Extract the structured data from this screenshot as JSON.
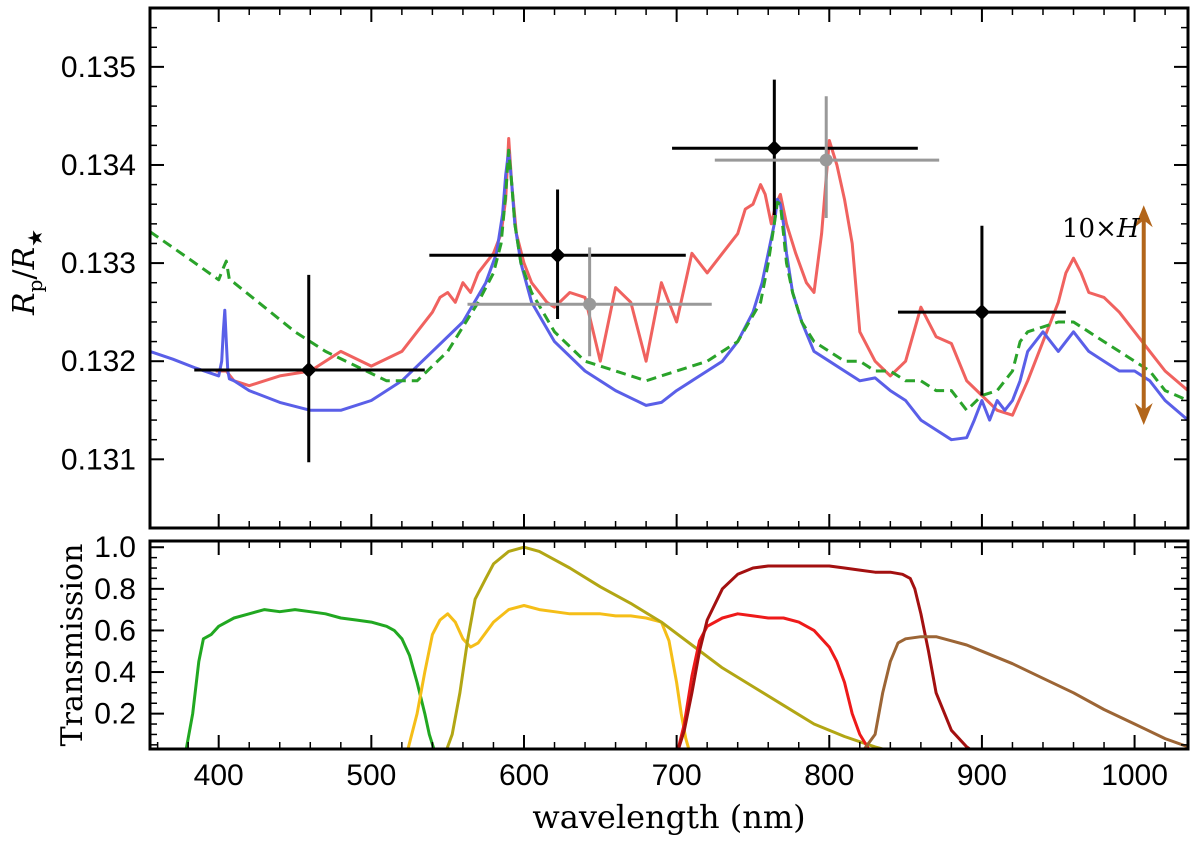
{
  "chart_data": [
    {
      "type": "line",
      "panel": "top",
      "ylabel": "Rp/R★",
      "ylabel_main": "R",
      "ylabel_sub1": "p",
      "ylabel_slash": "/",
      "ylabel_main2": "R",
      "ylabel_sub2": "★",
      "xlim": [
        355,
        1035
      ],
      "ylim": [
        0.1303,
        0.1356
      ],
      "yticks": [
        0.131,
        0.132,
        0.133,
        0.134,
        0.135
      ],
      "ytick_labels": [
        "0.131",
        "0.132",
        "0.133",
        "0.134",
        "0.135"
      ],
      "annotation": "10×H",
      "annotation_prefix": "10×",
      "annotation_var": "H",
      "scale_arrow": {
        "x": 1006,
        "y_top": 0.13359,
        "y_bottom": 0.13135,
        "color": "#b2651a"
      },
      "series": [
        {
          "name": "model-red",
          "color": "#f0625f",
          "style": "solid",
          "x": [
            398,
            402,
            405,
            410,
            420,
            440,
            460,
            480,
            500,
            520,
            530,
            540,
            545,
            550,
            555,
            560,
            565,
            570,
            575,
            580,
            585,
            588,
            590,
            592,
            595,
            600,
            605,
            610,
            615,
            620,
            630,
            640,
            650,
            660,
            670,
            680,
            690,
            700,
            710,
            720,
            730,
            740,
            745,
            750,
            755,
            758,
            762,
            765,
            768,
            772,
            778,
            785,
            790,
            795,
            800,
            805,
            810,
            815,
            820,
            830,
            840,
            850,
            860,
            870,
            880,
            890,
            900,
            910,
            920,
            930,
            940,
            950,
            955,
            960,
            965,
            970,
            980,
            990,
            1000,
            1010,
            1020,
            1035
          ],
          "y": [
            0.1319,
            0.1319,
            0.1319,
            0.1318,
            0.13175,
            0.13185,
            0.1319,
            0.1321,
            0.13195,
            0.1321,
            0.1323,
            0.1325,
            0.13265,
            0.1327,
            0.1326,
            0.1328,
            0.1327,
            0.1329,
            0.133,
            0.1331,
            0.1333,
            0.13365,
            0.13427,
            0.1338,
            0.1333,
            0.133,
            0.1328,
            0.1327,
            0.1326,
            0.13255,
            0.1327,
            0.13265,
            0.132,
            0.13275,
            0.1326,
            0.132,
            0.1328,
            0.1324,
            0.1331,
            0.1329,
            0.1331,
            0.1333,
            0.13355,
            0.1336,
            0.1338,
            0.1337,
            0.1334,
            0.1336,
            0.1337,
            0.1334,
            0.1331,
            0.1328,
            0.1327,
            0.1333,
            0.13425,
            0.134,
            0.13365,
            0.1332,
            0.1323,
            0.132,
            0.13185,
            0.132,
            0.13255,
            0.13225,
            0.13218,
            0.1318,
            0.13165,
            0.1315,
            0.13145,
            0.1318,
            0.1322,
            0.1326,
            0.1329,
            0.13305,
            0.1329,
            0.1327,
            0.13265,
            0.1325,
            0.1323,
            0.1321,
            0.1319,
            0.1317
          ]
        },
        {
          "name": "model-blue",
          "color": "#5a5fe8",
          "style": "solid",
          "x": [
            355,
            370,
            385,
            400,
            402,
            403,
            404,
            405,
            406,
            407,
            410,
            420,
            440,
            460,
            480,
            500,
            520,
            540,
            560,
            575,
            582,
            586,
            588,
            590,
            592,
            594,
            598,
            605,
            620,
            640,
            660,
            680,
            690,
            700,
            710,
            720,
            730,
            740,
            750,
            756,
            760,
            764,
            766,
            768,
            770,
            772,
            776,
            782,
            790,
            800,
            810,
            820,
            830,
            840,
            850,
            860,
            870,
            880,
            890,
            895,
            900,
            905,
            910,
            915,
            920,
            925,
            930,
            935,
            940,
            945,
            950,
            955,
            960,
            965,
            970,
            980,
            990,
            1000,
            1010,
            1020,
            1035
          ],
          "y": [
            0.1321,
            0.13202,
            0.13193,
            0.13185,
            0.132,
            0.1323,
            0.13252,
            0.1322,
            0.1319,
            0.13182,
            0.1318,
            0.1317,
            0.13158,
            0.1315,
            0.1315,
            0.1316,
            0.1318,
            0.1321,
            0.1324,
            0.1328,
            0.1331,
            0.1335,
            0.1339,
            0.13415,
            0.1338,
            0.1334,
            0.133,
            0.1326,
            0.1322,
            0.1319,
            0.1317,
            0.13155,
            0.13158,
            0.1317,
            0.1318,
            0.1319,
            0.132,
            0.1322,
            0.1325,
            0.1328,
            0.1331,
            0.1334,
            0.13365,
            0.1336,
            0.1334,
            0.1331,
            0.1327,
            0.1324,
            0.1321,
            0.132,
            0.1319,
            0.1318,
            0.13183,
            0.1317,
            0.1316,
            0.1314,
            0.1313,
            0.1312,
            0.13122,
            0.1314,
            0.1316,
            0.1314,
            0.1316,
            0.1315,
            0.1316,
            0.1318,
            0.1321,
            0.1322,
            0.1323,
            0.1322,
            0.1321,
            0.1322,
            0.1323,
            0.1322,
            0.1321,
            0.132,
            0.1319,
            0.1319,
            0.1318,
            0.1316,
            0.1314
          ]
        },
        {
          "name": "model-green",
          "color": "#2aa32a",
          "style": "dashed",
          "x": [
            355,
            380,
            400,
            403,
            405,
            407,
            410,
            430,
            450,
            470,
            490,
            510,
            530,
            550,
            570,
            580,
            585,
            588,
            590,
            592,
            594,
            598,
            605,
            620,
            640,
            660,
            680,
            700,
            720,
            740,
            755,
            760,
            764,
            766,
            768,
            770,
            772,
            776,
            782,
            790,
            800,
            810,
            820,
            830,
            840,
            850,
            860,
            870,
            880,
            890,
            900,
            910,
            920,
            925,
            930,
            940,
            950,
            960,
            970,
            980,
            990,
            1000,
            1010,
            1020,
            1035
          ],
          "y": [
            0.13332,
            0.13305,
            0.13283,
            0.13295,
            0.13302,
            0.13283,
            0.1328,
            0.13255,
            0.1323,
            0.1321,
            0.13195,
            0.1318,
            0.1318,
            0.1321,
            0.1326,
            0.1329,
            0.1332,
            0.1337,
            0.13415,
            0.1338,
            0.1334,
            0.133,
            0.1327,
            0.1323,
            0.132,
            0.1319,
            0.1318,
            0.1319,
            0.132,
            0.1322,
            0.1326,
            0.133,
            0.1334,
            0.13362,
            0.1336,
            0.1333,
            0.133,
            0.1327,
            0.1324,
            0.1322,
            0.1321,
            0.132,
            0.132,
            0.1319,
            0.1319,
            0.1318,
            0.1318,
            0.1317,
            0.1317,
            0.1315,
            0.13165,
            0.1317,
            0.1319,
            0.1322,
            0.1323,
            0.13235,
            0.1324,
            0.1324,
            0.1323,
            0.1322,
            0.1321,
            0.132,
            0.1319,
            0.1317,
            0.1316
          ]
        }
      ],
      "errorbars": [
        {
          "name": "black",
          "color": "#000000",
          "marker": "diamond",
          "points": [
            {
              "x": 459,
              "y": 0.13191,
              "xerr_low": 384,
              "xerr_high": 535,
              "yerr_low": 0.13097,
              "yerr_high": 0.13288
            },
            {
              "x": 622,
              "y": 0.13308,
              "xerr_low": 538,
              "xerr_high": 706,
              "yerr_low": 0.13243,
              "yerr_high": 0.13375
            },
            {
              "x": 764,
              "y": 0.13417,
              "xerr_low": 697,
              "xerr_high": 858,
              "yerr_low": 0.13349,
              "yerr_high": 0.13487
            },
            {
              "x": 900,
              "y": 0.1325,
              "xerr_low": 845,
              "xerr_high": 955,
              "yerr_low": 0.13165,
              "yerr_high": 0.13338
            }
          ]
        },
        {
          "name": "gray",
          "color": "#999999",
          "marker": "circle",
          "points": [
            {
              "x": 643,
              "y": 0.13258,
              "xerr_low": 563,
              "xerr_high": 723,
              "yerr_low": 0.13205,
              "yerr_high": 0.13316
            },
            {
              "x": 798,
              "y": 0.13405,
              "xerr_low": 725,
              "xerr_high": 872,
              "yerr_low": 0.13346,
              "yerr_high": 0.1347
            }
          ]
        }
      ]
    },
    {
      "type": "line",
      "panel": "bottom",
      "ylabel": "Transmission",
      "xlabel": "wavelength (nm)",
      "xlim": [
        355,
        1035
      ],
      "ylim": [
        0.03,
        1.03
      ],
      "xticks": [
        400,
        500,
        600,
        700,
        800,
        900,
        1000
      ],
      "xtick_labels": [
        "400",
        "500",
        "600",
        "700",
        "800",
        "900",
        "1000"
      ],
      "yticks": [
        0.2,
        0.4,
        0.6,
        0.8,
        1.0
      ],
      "ytick_labels": [
        "0.2",
        "0.4",
        "0.6",
        "0.8",
        "1.0"
      ],
      "series": [
        {
          "name": "green-filter",
          "color": "#21a821",
          "x": [
            378,
            383,
            387,
            390,
            395,
            400,
            410,
            420,
            430,
            440,
            450,
            460,
            470,
            480,
            490,
            500,
            510,
            515,
            520,
            525,
            530,
            535,
            538,
            541,
            543
          ],
          "y": [
            0.0,
            0.2,
            0.45,
            0.56,
            0.58,
            0.62,
            0.66,
            0.68,
            0.7,
            0.69,
            0.7,
            0.69,
            0.68,
            0.66,
            0.65,
            0.64,
            0.62,
            0.6,
            0.56,
            0.48,
            0.35,
            0.2,
            0.1,
            0.03,
            0.0
          ]
        },
        {
          "name": "yellow-filter",
          "color": "#f5be18",
          "x": [
            523,
            530,
            535,
            540,
            545,
            550,
            555,
            560,
            565,
            570,
            580,
            590,
            600,
            610,
            620,
            630,
            640,
            650,
            660,
            670,
            680,
            690,
            695,
            700,
            703,
            706,
            708,
            710
          ],
          "y": [
            0.0,
            0.2,
            0.4,
            0.58,
            0.65,
            0.68,
            0.64,
            0.56,
            0.52,
            0.54,
            0.64,
            0.7,
            0.72,
            0.7,
            0.69,
            0.68,
            0.68,
            0.68,
            0.67,
            0.67,
            0.66,
            0.64,
            0.55,
            0.35,
            0.2,
            0.08,
            0.03,
            0.0
          ]
        },
        {
          "name": "olive-filter",
          "color": "#b2a614",
          "x": [
            548,
            553,
            558,
            563,
            568,
            575,
            580,
            590,
            600,
            610,
            620,
            630,
            650,
            670,
            690,
            710,
            730,
            750,
            770,
            790,
            810,
            830,
            850
          ],
          "y": [
            0.0,
            0.1,
            0.3,
            0.55,
            0.75,
            0.85,
            0.92,
            0.98,
            1.0,
            0.98,
            0.94,
            0.9,
            0.81,
            0.73,
            0.64,
            0.53,
            0.42,
            0.33,
            0.24,
            0.15,
            0.09,
            0.04,
            0.0
          ]
        },
        {
          "name": "red-filter",
          "color": "#ee1a1a",
          "x": [
            700,
            705,
            710,
            715,
            720,
            730,
            740,
            750,
            760,
            770,
            780,
            790,
            800,
            805,
            810,
            815,
            820,
            825,
            828
          ],
          "y": [
            0.0,
            0.15,
            0.38,
            0.55,
            0.62,
            0.66,
            0.68,
            0.67,
            0.66,
            0.66,
            0.64,
            0.6,
            0.52,
            0.45,
            0.35,
            0.2,
            0.1,
            0.04,
            0.0
          ]
        },
        {
          "name": "darkred-filter",
          "color": "#a31010",
          "x": [
            700,
            705,
            710,
            715,
            720,
            730,
            740,
            750,
            760,
            770,
            780,
            790,
            800,
            810,
            820,
            830,
            840,
            848,
            853,
            856,
            860,
            865,
            870,
            880,
            890,
            898
          ],
          "y": [
            0.0,
            0.12,
            0.3,
            0.5,
            0.65,
            0.8,
            0.87,
            0.9,
            0.91,
            0.91,
            0.91,
            0.91,
            0.91,
            0.9,
            0.89,
            0.88,
            0.88,
            0.87,
            0.85,
            0.8,
            0.68,
            0.5,
            0.3,
            0.12,
            0.04,
            0.0
          ]
        },
        {
          "name": "brown-filter",
          "color": "#9c6535",
          "x": [
            820,
            830,
            835,
            840,
            845,
            850,
            860,
            870,
            880,
            890,
            900,
            920,
            940,
            960,
            980,
            1000,
            1020,
            1035
          ],
          "y": [
            0.0,
            0.1,
            0.3,
            0.45,
            0.54,
            0.56,
            0.57,
            0.57,
            0.55,
            0.53,
            0.5,
            0.44,
            0.37,
            0.3,
            0.22,
            0.15,
            0.08,
            0.04
          ]
        }
      ]
    }
  ]
}
